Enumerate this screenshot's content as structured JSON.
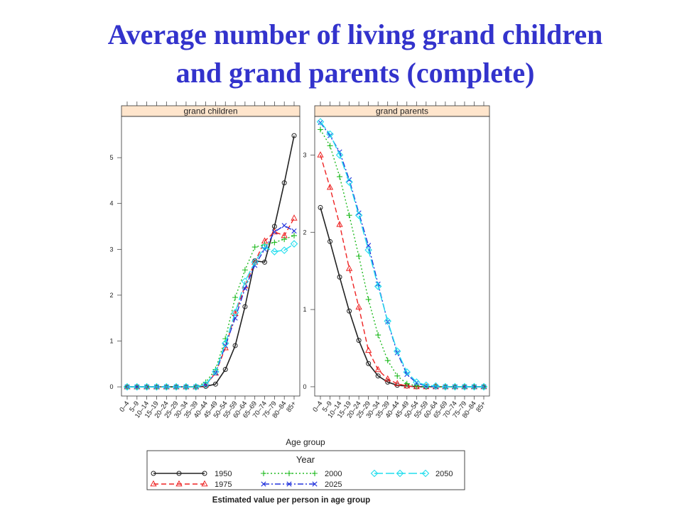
{
  "title": {
    "line1": "Average number of living grand children",
    "line2": "and grand parents (complete)"
  },
  "colors": {
    "title": "#3333cc",
    "strip_bg": "#ffe5cc",
    "1950": "#222222",
    "1975": "#ee2222",
    "2000": "#22bb22",
    "2025": "#2233dd",
    "2050": "#22ddee"
  },
  "chart_data": {
    "type": "line",
    "xlabel": "Age group",
    "caption": "Estimated value per person in age group",
    "legend": {
      "title": "Year",
      "position": "bottom",
      "entries": [
        {
          "name": "1950",
          "line": "solid",
          "marker": "circle"
        },
        {
          "name": "1975",
          "line": "dashed",
          "marker": "triangle"
        },
        {
          "name": "2000",
          "line": "dotted",
          "marker": "plus"
        },
        {
          "name": "2025",
          "line": "dashdot",
          "marker": "cross"
        },
        {
          "name": "2050",
          "line": "longdash",
          "marker": "diamond"
        }
      ]
    },
    "categories": [
      "0–4",
      "5–9",
      "10–14",
      "15–19",
      "20–24",
      "25–29",
      "30–34",
      "35–39",
      "40–44",
      "45–49",
      "50–54",
      "55–59",
      "60–64",
      "65–69",
      "70–74",
      "75–79",
      "80–84",
      "85+"
    ],
    "panels": [
      {
        "strip": "grand children",
        "ylim": [
          -0.2,
          5.9
        ],
        "yticks": [
          0,
          1,
          2,
          3,
          4,
          5
        ],
        "series": [
          {
            "name": "1950",
            "values": [
              0,
              0,
              0,
              0,
              0,
              0,
              0,
              0,
              0.01,
              0.06,
              0.38,
              0.9,
              1.75,
              2.75,
              2.72,
              3.5,
              4.45,
              5.48
            ]
          },
          {
            "name": "1975",
            "values": [
              0,
              0,
              0,
              0,
              0,
              0,
              0,
              0,
              0.04,
              0.3,
              0.85,
              1.6,
              2.2,
              2.72,
              3.18,
              3.38,
              3.3,
              3.68
            ]
          },
          {
            "name": "2000",
            "values": [
              0,
              0,
              0,
              0,
              0,
              0,
              0,
              0,
              0.1,
              0.38,
              1.05,
              1.95,
              2.55,
              3.05,
              3.1,
              3.15,
              3.22,
              3.3
            ]
          },
          {
            "name": "2025",
            "values": [
              0,
              0,
              0,
              0,
              0,
              0,
              0,
              0,
              0.05,
              0.3,
              0.9,
              1.5,
              2.15,
              2.65,
              3.0,
              3.38,
              3.52,
              3.4
            ]
          },
          {
            "name": "2050",
            "values": [
              0,
              0,
              0,
              0,
              0,
              0,
              0,
              0,
              0.05,
              0.33,
              0.95,
              1.62,
              2.3,
              2.72,
              3.05,
              2.95,
              2.98,
              3.12
            ]
          }
        ]
      },
      {
        "strip": "grand parents",
        "ylim": [
          -0.12,
          3.5
        ],
        "yticks": [
          0,
          1,
          2,
          3
        ],
        "series": [
          {
            "name": "1950",
            "values": [
              2.32,
              1.88,
              1.42,
              0.98,
              0.6,
              0.3,
              0.14,
              0.06,
              0.02,
              0.01,
              0,
              0,
              0,
              0,
              0,
              0,
              0,
              0
            ]
          },
          {
            "name": "1975",
            "values": [
              3.0,
              2.58,
              2.1,
              1.53,
              1.03,
              0.47,
              0.22,
              0.1,
              0.04,
              0.01,
              0,
              0,
              0,
              0,
              0,
              0,
              0,
              0
            ]
          },
          {
            "name": "2000",
            "values": [
              3.33,
              3.12,
              2.72,
              2.22,
              1.69,
              1.13,
              0.67,
              0.34,
              0.14,
              0.04,
              0.01,
              0,
              0,
              0,
              0,
              0,
              0,
              0
            ]
          },
          {
            "name": "2025",
            "values": [
              3.42,
              3.25,
              3.04,
              2.68,
              2.25,
              1.83,
              1.33,
              0.84,
              0.44,
              0.16,
              0.05,
              0.01,
              0,
              0,
              0,
              0,
              0,
              0
            ]
          },
          {
            "name": "2050",
            "values": [
              3.43,
              3.27,
              3.0,
              2.65,
              2.22,
              1.77,
              1.3,
              0.85,
              0.46,
              0.19,
              0.06,
              0.02,
              0.01,
              0,
              0,
              0,
              0,
              0
            ]
          }
        ]
      }
    ]
  }
}
